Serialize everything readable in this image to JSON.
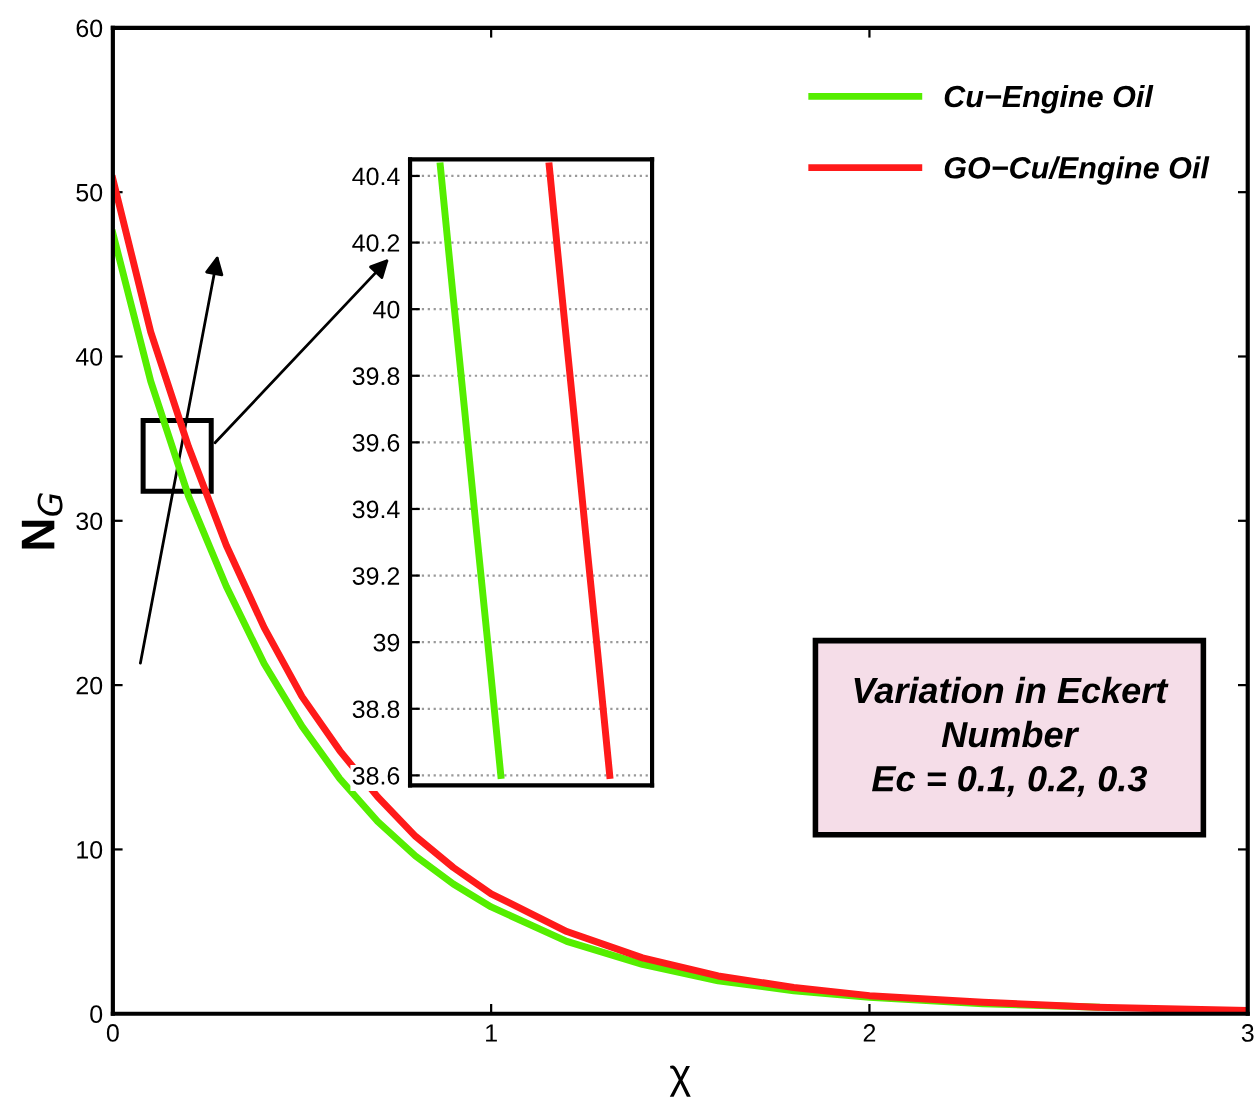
{
  "chart_data": [
    {
      "type": "line",
      "xlabel": "χ",
      "ylabel": "N$_{G}$",
      "xlim": [
        0,
        3
      ],
      "ylim": [
        0,
        60
      ],
      "xticks": [
        0,
        1,
        2,
        3
      ],
      "yticks": [
        0,
        10,
        20,
        30,
        40,
        50,
        60
      ],
      "grid": false,
      "legend": "top right",
      "annotations": [
        "Variation in Eckert\nNumber\nEc = 0.1, 0.2, 0.3"
      ],
      "series": [
        {
          "name": "Cu−Engine Oil",
          "color": "#55ee00",
          "x": [
            0,
            0.1,
            0.2,
            0.3,
            0.4,
            0.5,
            0.6,
            0.7,
            0.8,
            0.9,
            1.0,
            1.2,
            1.4,
            1.6,
            1.8,
            2.0,
            2.3,
            2.6
          ],
          "values": [
            47.5,
            38.5,
            31.5,
            26,
            21.3,
            17.5,
            14.3,
            11.7,
            9.6,
            7.9,
            6.5,
            4.4,
            3.0,
            2.0,
            1.4,
            1.0,
            0.6,
            0.4
          ]
        },
        {
          "name": "GO−Cu/Engine Oil",
          "color": "#ff1a1a",
          "x": [
            0,
            0.1,
            0.2,
            0.3,
            0.4,
            0.5,
            0.6,
            0.7,
            0.8,
            0.9,
            1.0,
            1.2,
            1.4,
            1.6,
            1.8,
            2.0,
            2.3,
            2.6,
            3.0
          ],
          "values": [
            50.8,
            41.5,
            34.5,
            28.5,
            23.5,
            19.3,
            16,
            13.2,
            10.8,
            8.9,
            7.3,
            5.0,
            3.4,
            2.3,
            1.6,
            1.1,
            0.7,
            0.4,
            0.2
          ]
        }
      ]
    },
    {
      "type": "line",
      "categories": [
        null,
        null,
        null,
        null,
        null,
        null,
        null,
        null,
        null,
        null,
        null,
        null,
        null,
        null,
        null,
        null,
        null,
        null,
        null,
        null
      ],
      "ylim": [
        38.57,
        40.45
      ],
      "yticks": [
        38.6,
        38.8,
        39,
        39.2,
        39.4,
        39.6,
        39.8,
        40,
        40.2,
        40.4
      ],
      "grid": "y",
      "series": [
        {
          "color": "#55ee00",
          "values": [
            null,
            null,
            40.43,
            40.06,
            39.7,
            39.33,
            38.97,
            38.6,
            null,
            null,
            null,
            null,
            null,
            null,
            null,
            null,
            null,
            null,
            null,
            null
          ]
        },
        {
          "color": "#ff1a1a",
          "values": [
            null,
            null,
            null,
            null,
            null,
            null,
            null,
            null,
            null,
            null,
            null,
            40.43,
            40.06,
            39.7,
            39.33,
            38.97,
            38.6,
            null,
            null,
            null
          ]
        }
      ]
    }
  ]
}
